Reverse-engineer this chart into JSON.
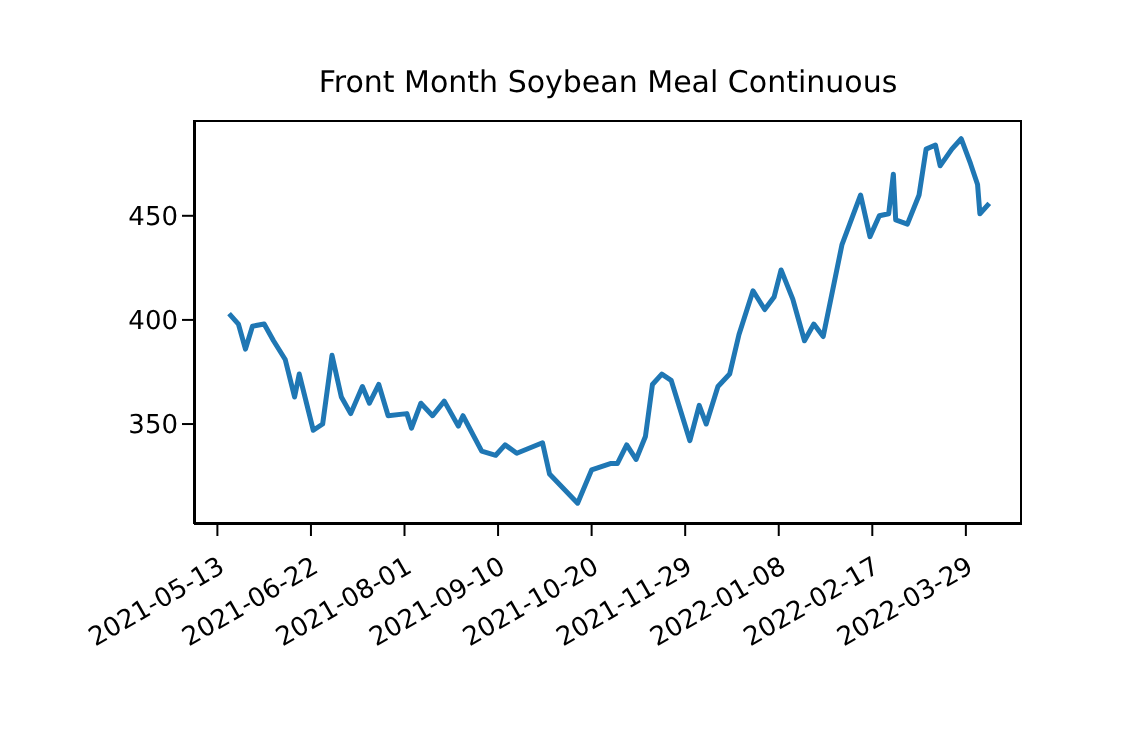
{
  "chart_data": {
    "type": "line",
    "title": "Front Month Soybean Meal Continuous",
    "x": [
      "2021-05-18",
      "2021-05-22",
      "2021-05-25",
      "2021-05-28",
      "2021-06-02",
      "2021-06-06",
      "2021-06-11",
      "2021-06-15",
      "2021-06-17",
      "2021-06-23",
      "2021-06-27",
      "2021-07-01",
      "2021-07-05",
      "2021-07-09",
      "2021-07-14",
      "2021-07-17",
      "2021-07-21",
      "2021-07-25",
      "2021-08-02",
      "2021-08-04",
      "2021-08-08",
      "2021-08-13",
      "2021-08-18",
      "2021-08-24",
      "2021-08-26",
      "2021-09-03",
      "2021-09-09",
      "2021-09-13",
      "2021-09-18",
      "2021-09-29",
      "2021-10-02",
      "2021-10-14",
      "2021-10-20",
      "2021-10-28",
      "2021-10-31",
      "2021-11-04",
      "2021-11-08",
      "2021-11-12",
      "2021-11-15",
      "2021-11-19",
      "2021-11-23",
      "2021-12-01",
      "2021-12-05",
      "2021-12-08",
      "2021-12-13",
      "2021-12-18",
      "2021-12-22",
      "2021-12-28",
      "2022-01-02",
      "2022-01-06",
      "2022-01-09",
      "2022-01-14",
      "2022-01-19",
      "2022-01-23",
      "2022-01-27",
      "2022-01-31",
      "2022-02-04",
      "2022-02-12",
      "2022-02-16",
      "2022-02-20",
      "2022-02-24",
      "2022-02-26",
      "2022-02-27",
      "2022-03-04",
      "2022-03-09",
      "2022-03-12",
      "2022-03-16",
      "2022-03-18",
      "2022-03-23",
      "2022-03-27",
      "2022-03-31",
      "2022-04-03",
      "2022-04-04",
      "2022-04-08"
    ],
    "series": [
      {
        "color": "#1f77b4",
        "values": [
          403,
          398,
          386,
          397,
          398,
          390,
          381,
          363,
          374,
          347,
          350,
          383,
          363,
          355,
          368,
          360,
          369,
          354,
          355,
          348,
          360,
          354,
          361,
          349,
          354,
          337,
          335,
          340,
          336,
          341,
          326,
          312,
          328,
          331,
          331,
          340,
          333,
          344,
          369,
          374,
          371,
          342,
          359,
          350,
          368,
          374,
          393,
          414,
          405,
          411,
          424,
          410,
          390,
          398,
          392,
          414,
          436,
          460,
          440,
          450,
          451,
          470,
          448,
          446,
          460,
          482,
          484,
          474,
          482,
          487,
          475,
          465,
          451,
          456
        ]
      }
    ],
    "xlim": [
      "2021-05-03",
      "2022-04-22"
    ],
    "xticks": [
      {
        "value": "2021-05-13",
        "label": "2021-05-13"
      },
      {
        "value": "2021-06-22",
        "label": "2021-06-22"
      },
      {
        "value": "2021-08-01",
        "label": "2021-08-01"
      },
      {
        "value": "2021-09-10",
        "label": "2021-09-10"
      },
      {
        "value": "2021-10-20",
        "label": "2021-10-20"
      },
      {
        "value": "2021-11-29",
        "label": "2021-11-29"
      },
      {
        "value": "2022-01-08",
        "label": "2022-01-08"
      },
      {
        "value": "2022-02-17",
        "label": "2022-02-17"
      },
      {
        "value": "2022-03-29",
        "label": "2022-03-29"
      }
    ],
    "ylim": [
      302,
      496
    ],
    "yticks": [
      350,
      400,
      450
    ],
    "grid": false,
    "legend": false,
    "marker": "none",
    "line_style": "solid"
  }
}
